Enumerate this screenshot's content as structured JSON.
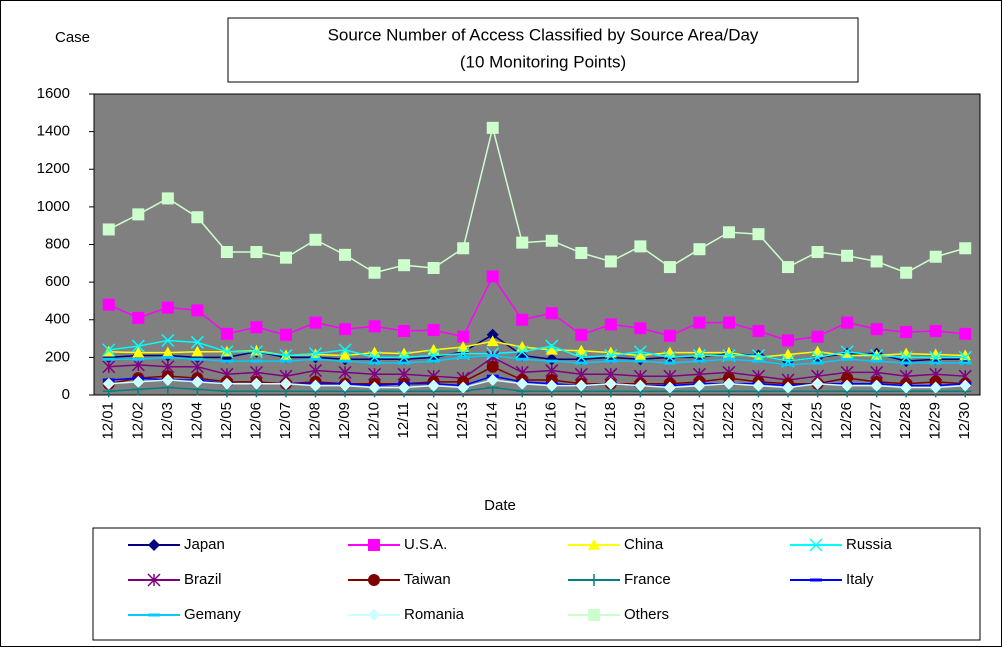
{
  "chart_data": {
    "type": "line",
    "title": "Source Number of Access Classified by Source Area/Day",
    "subtitle": "(10 Monitoring Points)",
    "ylabel": "Case",
    "xlabel": "Date",
    "categories": [
      "12/01",
      "12/02",
      "12/03",
      "12/04",
      "12/05",
      "12/06",
      "12/07",
      "12/08",
      "12/09",
      "12/10",
      "12/11",
      "12/12",
      "12/13",
      "12/14",
      "12/15",
      "12/16",
      "12/17",
      "12/18",
      "12/19",
      "12/20",
      "12/21",
      "12/22",
      "12/23",
      "12/24",
      "12/25",
      "12/26",
      "12/27",
      "12/28",
      "12/29",
      "12/30"
    ],
    "ylim": [
      0,
      1600
    ],
    "yticks": [
      0,
      200,
      400,
      600,
      800,
      1000,
      1200,
      1400,
      1600
    ],
    "grid": false,
    "background": "#808080",
    "series": [
      {
        "name": "Japan",
        "color": "#000080",
        "marker": "diamond",
        "values": [
          200,
          210,
          210,
          200,
          200,
          230,
          200,
          200,
          190,
          190,
          190,
          200,
          230,
          320,
          210,
          190,
          190,
          200,
          190,
          200,
          200,
          220,
          210,
          180,
          200,
          220,
          220,
          180,
          190,
          190
        ]
      },
      {
        "name": "U.S.A.",
        "color": "#ff00ff",
        "marker": "square",
        "values": [
          480,
          410,
          465,
          450,
          325,
          360,
          320,
          385,
          350,
          365,
          340,
          345,
          310,
          630,
          400,
          435,
          320,
          375,
          355,
          315,
          385,
          385,
          340,
          290,
          310,
          385,
          350,
          335,
          340,
          325
        ]
      },
      {
        "name": "China",
        "color": "#ffff00",
        "marker": "triangle",
        "values": [
          230,
          225,
          225,
          230,
          230,
          235,
          210,
          215,
          210,
          225,
          220,
          240,
          255,
          285,
          255,
          240,
          235,
          225,
          210,
          225,
          225,
          225,
          200,
          215,
          230,
          210,
          210,
          220,
          215,
          210
        ]
      },
      {
        "name": "Russia",
        "color": "#00ffff",
        "marker": "x",
        "values": [
          240,
          260,
          290,
          280,
          230,
          230,
          210,
          220,
          240,
          200,
          200,
          210,
          220,
          220,
          230,
          260,
          200,
          210,
          230,
          200,
          210,
          210,
          210,
          180,
          200,
          230,
          210,
          200,
          200,
          200
        ]
      },
      {
        "name": "Brazil",
        "color": "#800080",
        "marker": "star",
        "values": [
          150,
          160,
          150,
          150,
          110,
          120,
          100,
          130,
          120,
          110,
          110,
          100,
          90,
          200,
          120,
          130,
          110,
          110,
          100,
          100,
          110,
          120,
          100,
          80,
          100,
          120,
          120,
          100,
          110,
          100
        ]
      },
      {
        "name": "Taiwan",
        "color": "#800000",
        "marker": "circle",
        "values": [
          60,
          90,
          100,
          90,
          70,
          70,
          60,
          70,
          60,
          60,
          60,
          70,
          70,
          150,
          80,
          80,
          60,
          60,
          60,
          60,
          70,
          90,
          70,
          60,
          60,
          90,
          70,
          60,
          70,
          60
        ]
      },
      {
        "name": "France",
        "color": "#008080",
        "marker": "plus",
        "values": [
          20,
          30,
          40,
          30,
          20,
          20,
          20,
          20,
          20,
          20,
          20,
          20,
          20,
          40,
          20,
          20,
          20,
          20,
          20,
          20,
          20,
          20,
          20,
          20,
          20,
          20,
          20,
          20,
          20,
          20
        ]
      },
      {
        "name": "Italy",
        "color": "#0000ff",
        "marker": "dash",
        "values": [
          80,
          90,
          80,
          80,
          60,
          60,
          60,
          60,
          60,
          50,
          60,
          60,
          50,
          100,
          70,
          60,
          50,
          60,
          50,
          50,
          60,
          60,
          60,
          50,
          60,
          60,
          60,
          50,
          50,
          60
        ]
      },
      {
        "name": "Gemany",
        "color": "#00ccff",
        "marker": "dash",
        "values": [
          190,
          190,
          200,
          190,
          180,
          180,
          180,
          190,
          180,
          170,
          170,
          180,
          200,
          210,
          190,
          180,
          170,
          180,
          180,
          170,
          180,
          190,
          180,
          160,
          170,
          190,
          180,
          170,
          170,
          170
        ]
      },
      {
        "name": "Romania",
        "color": "#ccffff",
        "marker": "diamond",
        "values": [
          60,
          70,
          80,
          70,
          60,
          60,
          60,
          50,
          50,
          40,
          40,
          50,
          40,
          80,
          60,
          50,
          50,
          60,
          50,
          40,
          50,
          60,
          50,
          40,
          60,
          50,
          50,
          40,
          40,
          50
        ]
      },
      {
        "name": "Others",
        "color": "#ccffcc",
        "marker": "square",
        "values": [
          880,
          960,
          1045,
          945,
          760,
          760,
          730,
          825,
          745,
          650,
          690,
          675,
          780,
          1420,
          810,
          820,
          755,
          710,
          790,
          680,
          775,
          865,
          855,
          680,
          760,
          740,
          710,
          650,
          735,
          780
        ]
      }
    ]
  }
}
